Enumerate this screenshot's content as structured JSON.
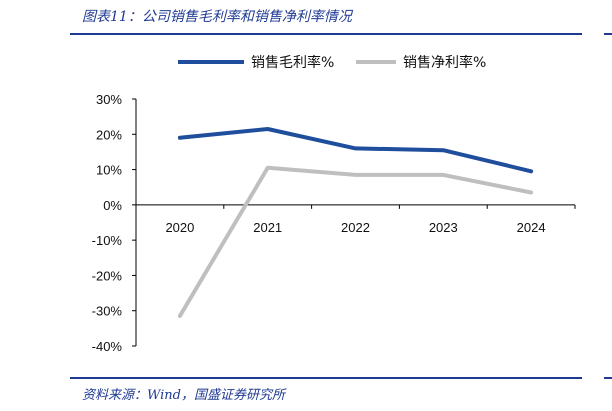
{
  "figure_title": "图表11：公司销售毛利率和销售净利率情况",
  "source_note": "资料来源：Wind，国盛证券研究所",
  "colors": {
    "accent": "#1f3a93",
    "series_gross": "#1f4e9c",
    "series_net": "#bfbfbf"
  },
  "chart_data": {
    "type": "line",
    "title": "",
    "xlabel": "",
    "ylabel": "",
    "categories": [
      "2020",
      "2021",
      "2022",
      "2023",
      "2024"
    ],
    "ylim": [
      -40,
      30
    ],
    "yticks": [
      "30%",
      "20%",
      "10%",
      "0%",
      "-10%",
      "-20%",
      "-30%",
      "-40%"
    ],
    "ytick_values": [
      30,
      20,
      10,
      0,
      -10,
      -20,
      -30,
      -40
    ],
    "grid": false,
    "legend_position": "top",
    "series": [
      {
        "name": "销售毛利率%",
        "color": "#1f4e9c",
        "values": [
          19.0,
          21.5,
          16.0,
          15.5,
          9.5
        ]
      },
      {
        "name": "销售净利率%",
        "color": "#bfbfbf",
        "values": [
          -31.5,
          10.5,
          8.5,
          8.5,
          3.5
        ]
      }
    ]
  }
}
